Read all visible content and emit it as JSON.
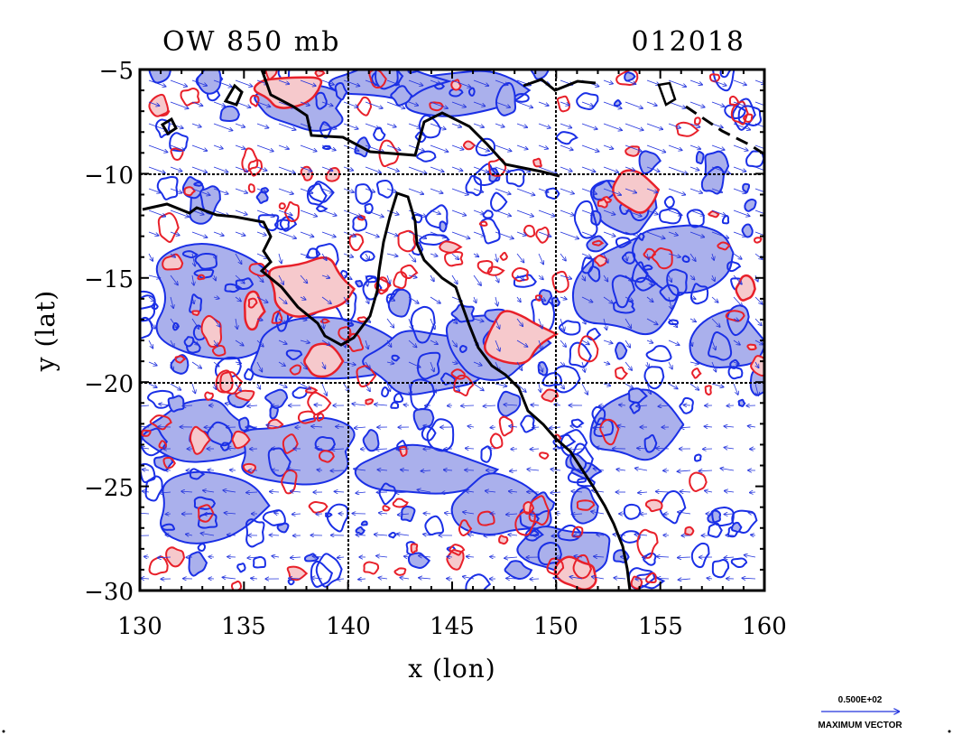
{
  "header": {
    "title_left": "OW 850 mb",
    "title_right": "012018"
  },
  "axes": {
    "xlabel": "x (lon)",
    "ylabel": "y (lat)",
    "x_range": [
      130,
      160
    ],
    "y_range": [
      -30,
      -5
    ],
    "x_ticks": [
      "130",
      "135",
      "140",
      "145",
      "150",
      "155",
      "160"
    ],
    "y_ticks": [
      "−5",
      "−10",
      "−15",
      "−20",
      "−25",
      "−30"
    ],
    "gridlines_lon": [
      140,
      150
    ],
    "gridlines_lat": [
      -10,
      -20
    ]
  },
  "legend": {
    "max_vector_value": "0.500E+02",
    "max_vector_label": "MAXIMUM VECTOR"
  },
  "colors": {
    "positive_contour": "#e8202a",
    "positive_fill": "#f6c9cc",
    "negative_contour": "#1a2fe6",
    "negative_fill": "#aab0ec",
    "vector": "#2233dd",
    "coastline": "#000000"
  }
}
